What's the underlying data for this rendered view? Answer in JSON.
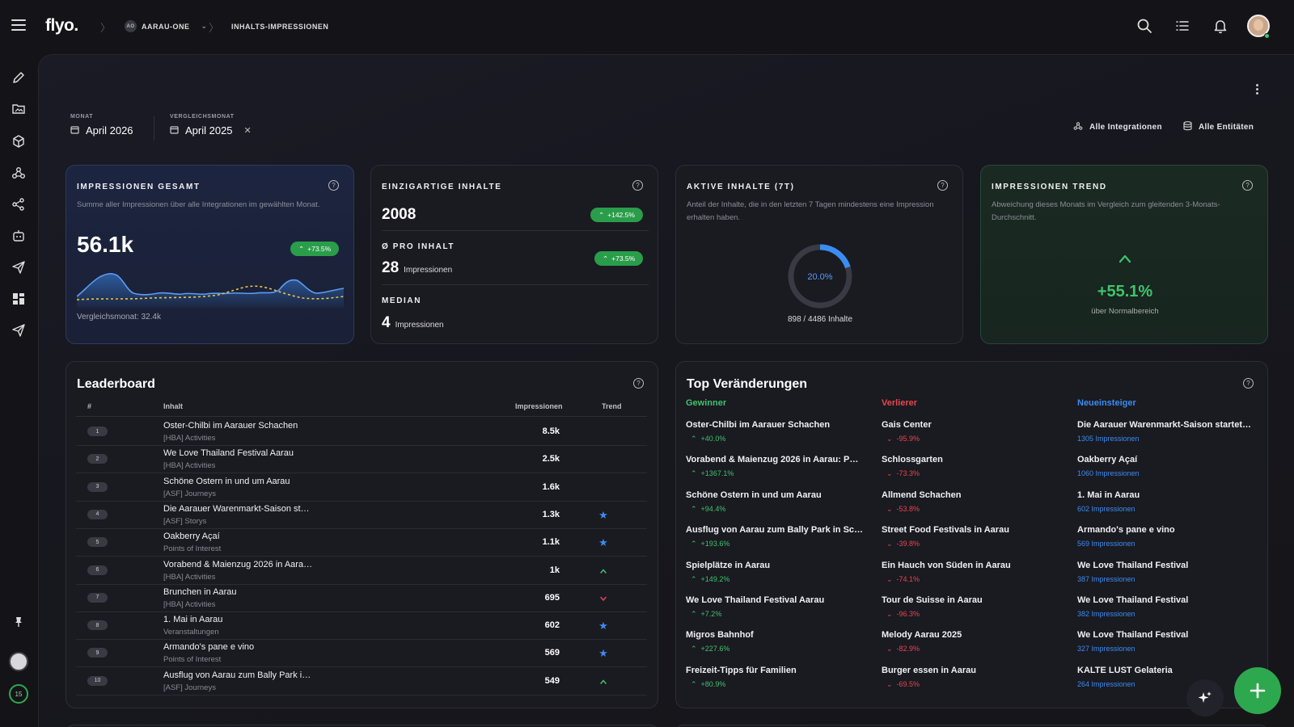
{
  "app": {
    "logo": "flyo."
  },
  "breadcrumb": {
    "org_badge": "AO",
    "org": "AARAU-ONE",
    "page": "INHALTS-IMPRESSIONEN"
  },
  "filters": {
    "month_label": "MONAT",
    "month_value": "April 2026",
    "compare_label": "VERGLEICHSMONAT",
    "compare_value": "April 2025",
    "integrations": "Alle Integrationen",
    "entities": "Alle Entitäten"
  },
  "kpi_total": {
    "title": "IMPRESSIONEN GESAMT",
    "desc": "Summe aller Impressionen über alle Integrationen im gewählten Monat.",
    "value": "56.1k",
    "delta": "+73.5%",
    "compare": "Vergleichsmonat: 32.4k"
  },
  "kpi_unique": {
    "title": "EINZIGARTIGE INHALTE",
    "value": "2008",
    "delta": "+142.5%",
    "avg_label": "Ø PRO INHALT",
    "avg_value": "28",
    "avg_unit": "Impressionen",
    "avg_delta": "+73.5%",
    "median_label": "MEDIAN",
    "median_value": "4",
    "median_unit": "Impressionen"
  },
  "kpi_active": {
    "title": "AKTIVE INHALTE (7T)",
    "desc": "Anteil der Inhalte, die in den letzten 7 Tagen mindestens eine Impression erhalten haben.",
    "percent_label": "20.0%",
    "fraction": 0.2,
    "count": "898 / 4486 Inhalte"
  },
  "kpi_trend": {
    "title": "IMPRESSIONEN TREND",
    "desc": "Abweichung dieses Monats im Vergleich zum gleitenden 3-Monats-Durchschnitt.",
    "value": "+55.1%",
    "caption": "über Normalbereich"
  },
  "leaderboard": {
    "title": "Leaderboard",
    "headers": {
      "rank": "#",
      "content": "Inhalt",
      "impressions": "Impressionen",
      "trend": "Trend"
    },
    "rows": [
      {
        "rank": "1",
        "title": "Oster-Chilbi im Aarauer Schachen",
        "sub": "[HBA] Activities",
        "value": "8.5k",
        "trend": ""
      },
      {
        "rank": "2",
        "title": "We Love Thailand Festival Aarau",
        "sub": "[HBA] Activities",
        "value": "2.5k",
        "trend": ""
      },
      {
        "rank": "3",
        "title": "Schöne Ostern in und um Aarau",
        "sub": "[ASF] Journeys",
        "value": "1.6k",
        "trend": ""
      },
      {
        "rank": "4",
        "title": "Die Aarauer Warenmarkt-Saison st…",
        "sub": "[ASF] Storys",
        "value": "1.3k",
        "trend": "star"
      },
      {
        "rank": "5",
        "title": "Oakberry Açaí",
        "sub": "Points of Interest",
        "value": "1.1k",
        "trend": "star"
      },
      {
        "rank": "6",
        "title": "Vorabend & Maienzug 2026 in Aara…",
        "sub": "[HBA] Activities",
        "value": "1k",
        "trend": "up"
      },
      {
        "rank": "7",
        "title": "Brunchen in Aarau",
        "sub": "[HBA] Activities",
        "value": "695",
        "trend": "down"
      },
      {
        "rank": "8",
        "title": "1. Mai in Aarau",
        "sub": "Veranstaltungen",
        "value": "602",
        "trend": "star"
      },
      {
        "rank": "9",
        "title": "Armando's pane e vino",
        "sub": "Points of Interest",
        "value": "569",
        "trend": "star"
      },
      {
        "rank": "10",
        "title": "Ausflug von Aarau zum Bally Park i…",
        "sub": "[ASF] Journeys",
        "value": "549",
        "trend": "up"
      }
    ]
  },
  "top_changes": {
    "title": "Top Veränderungen",
    "columns": [
      {
        "heading": "Gewinner",
        "color": "#3ec46a",
        "items": [
          {
            "name": "Oster-Chilbi im Aarauer Schachen",
            "sub": "+40.0%"
          },
          {
            "name": "Vorabend & Maienzug 2026 in Aarau: P…",
            "sub": "+1367.1%"
          },
          {
            "name": "Schöne Ostern in und um Aarau",
            "sub": "+94.4%"
          },
          {
            "name": "Ausflug von Aarau zum Bally Park in Sc…",
            "sub": "+193.6%"
          },
          {
            "name": "Spielplätze in Aarau",
            "sub": "+149.2%"
          },
          {
            "name": "We Love Thailand Festival Aarau",
            "sub": "+7.2%"
          },
          {
            "name": "Migros Bahnhof",
            "sub": "+227.6%"
          },
          {
            "name": "Freizeit-Tipps für Familien",
            "sub": "+80.9%"
          }
        ]
      },
      {
        "heading": "Verlierer",
        "color": "#e5484d",
        "items": [
          {
            "name": "Gais Center",
            "sub": "-95.9%"
          },
          {
            "name": "Schlossgarten",
            "sub": "-73.3%"
          },
          {
            "name": "Allmend Schachen",
            "sub": "-53.8%"
          },
          {
            "name": "Street Food Festivals in Aarau",
            "sub": "-39.8%"
          },
          {
            "name": "Ein Hauch von Süden in Aarau",
            "sub": "-74.1%"
          },
          {
            "name": "Tour de Suisse in Aarau",
            "sub": "-96.3%"
          },
          {
            "name": "Melody Aarau 2025",
            "sub": "-82.9%"
          },
          {
            "name": "Burger essen in Aarau",
            "sub": "-69.5%"
          }
        ]
      },
      {
        "heading": "Neueinsteiger",
        "color": "#3b8cf0",
        "items": [
          {
            "name": "Die Aarauer Warenmarkt-Saison startet…",
            "sub": "1305 Impressionen"
          },
          {
            "name": "Oakberry Açaí",
            "sub": "1060 Impressionen"
          },
          {
            "name": "1. Mai in Aarau",
            "sub": "602 Impressionen"
          },
          {
            "name": "Armando's pane e vino",
            "sub": "569 Impressionen"
          },
          {
            "name": "We Love Thailand Festival",
            "sub": "387 Impressionen"
          },
          {
            "name": "We Love Thailand Festival",
            "sub": "382 Impressionen"
          },
          {
            "name": "We Love Thailand Festival",
            "sub": "327 Impressionen"
          },
          {
            "name": "KALTE LUST Gelateria",
            "sub": "264 Impressionen"
          }
        ]
      }
    ]
  },
  "sidebar": {
    "counter": "15"
  },
  "colors": {
    "accent_green": "#2ea84f",
    "accent_blue": "#3b8cf0",
    "accent_red": "#e5484d"
  }
}
